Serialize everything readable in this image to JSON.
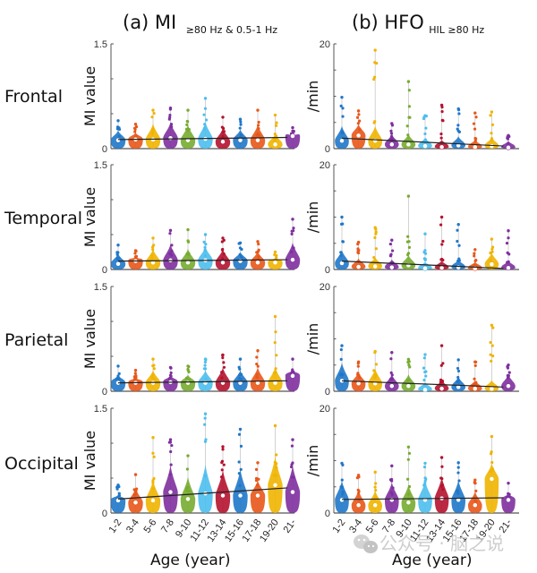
{
  "chart_data": {
    "type": "violin",
    "categories": [
      "1-2",
      "3-4",
      "5-6",
      "7-8",
      "9-10",
      "11-12",
      "13-14",
      "15-16",
      "17-18",
      "19-20",
      "21-"
    ],
    "category_colors": [
      "#1f77c9",
      "#e8571a",
      "#f0b400",
      "#7e2f9e",
      "#77ac30",
      "#4dbeee",
      "#b5122f",
      "#1f77c9",
      "#e8571a",
      "#f0b400",
      "#7e2f9e"
    ],
    "xlabel": "Age (year)",
    "row_labels": [
      "Frontal",
      "Temporal",
      "Parietal",
      "Occipital"
    ],
    "columns": [
      {
        "title_main": "(a) MI",
        "title_sub": "≥80 Hz & 0.5-1 Hz",
        "title_sub_style": "subscript",
        "ylabel": "MI value",
        "ylim": [
          0,
          1.5
        ],
        "yticks": [
          0,
          0.5,
          1.0,
          1.5
        ],
        "ytick_labels": [
          "0",
          "",
          "",
          "1.5"
        ],
        "rows": [
          {
            "region": "Frontal",
            "medians": [
              0.12,
              0.13,
              0.13,
              0.15,
              0.12,
              0.14,
              0.1,
              0.12,
              0.12,
              0.06,
              0.18
            ],
            "maxima": [
              0.4,
              0.35,
              0.55,
              0.58,
              0.55,
              0.72,
              0.45,
              0.42,
              0.55,
              0.48,
              0.3
            ],
            "trend": [
              0.13,
              0.16
            ]
          },
          {
            "region": "Temporal",
            "medians": [
              0.08,
              0.12,
              0.1,
              0.13,
              0.1,
              0.13,
              0.1,
              0.12,
              0.1,
              0.1,
              0.14
            ],
            "maxima": [
              0.35,
              0.27,
              0.45,
              0.56,
              0.57,
              0.5,
              0.45,
              0.38,
              0.4,
              0.25,
              0.72
            ],
            "trend": [
              0.12,
              0.14
            ]
          },
          {
            "region": "Parietal",
            "medians": [
              0.12,
              0.12,
              0.12,
              0.13,
              0.12,
              0.12,
              0.12,
              0.12,
              0.12,
              0.12,
              0.22
            ],
            "maxima": [
              0.36,
              0.3,
              0.46,
              0.34,
              0.36,
              0.46,
              0.52,
              0.46,
              0.58,
              1.07,
              0.46
            ],
            "trend": [
              0.12,
              0.15
            ]
          },
          {
            "region": "Occipital",
            "medians": [
              0.18,
              0.15,
              0.18,
              0.3,
              0.2,
              0.28,
              0.25,
              0.25,
              0.25,
              0.4,
              0.3
            ],
            "maxima": [
              0.4,
              0.55,
              1.08,
              1.05,
              0.82,
              1.42,
              0.95,
              1.2,
              0.72,
              1.25,
              1.05
            ],
            "trend": [
              0.2,
              0.36
            ]
          }
        ]
      },
      {
        "title_main": "(b) HFO",
        "title_sub": "HIL ≥80 Hz",
        "title_sub_style": "subscript",
        "ylabel": "/min",
        "ylim": [
          0,
          20
        ],
        "yticks": [
          0,
          5,
          10,
          15,
          20
        ],
        "ytick_labels": [
          "0",
          "",
          "",
          "",
          "20"
        ],
        "rows": [
          {
            "region": "Frontal",
            "medians": [
              1.5,
              2.5,
              1.5,
              0.8,
              0.8,
              0.5,
              0.3,
              0.6,
              0.3,
              0.5,
              0.2
            ],
            "maxima": [
              9.8,
              7.2,
              18.8,
              4.8,
              12.8,
              6.3,
              8.3,
              7.6,
              6.8,
              7.0,
              2.5
            ],
            "trend": [
              2.0,
              0.5
            ]
          },
          {
            "region": "Temporal",
            "medians": [
              1.2,
              0.5,
              0.6,
              0.4,
              0.8,
              0.2,
              0.3,
              0.4,
              0.2,
              1.0,
              0.3
            ],
            "maxima": [
              10.0,
              5.2,
              8.0,
              5.6,
              14.0,
              6.8,
              10.0,
              8.6,
              3.8,
              5.8,
              7.4
            ],
            "trend": [
              1.6,
              0.2
            ]
          },
          {
            "region": "Parietal",
            "medians": [
              2.0,
              1.5,
              1.5,
              1.0,
              1.0,
              0.3,
              0.5,
              0.8,
              0.5,
              0.5,
              1.0
            ],
            "maxima": [
              8.7,
              5.6,
              7.6,
              7.4,
              6.1,
              7.0,
              8.7,
              6.0,
              5.6,
              12.6,
              5.0
            ],
            "trend": [
              2.0,
              0.8
            ]
          },
          {
            "region": "Occipital",
            "medians": [
              2.5,
              1.5,
              1.5,
              2.5,
              2.0,
              2.5,
              2.8,
              2.5,
              1.5,
              6.5,
              2.5
            ],
            "maxima": [
              9.5,
              7.2,
              7.8,
              9.0,
              12.6,
              9.5,
              10.6,
              9.6,
              6.3,
              14.6,
              5.7
            ],
            "trend": [
              2.6,
              2.9
            ]
          }
        ]
      }
    ]
  },
  "watermark": {
    "icon": "wechat-icon",
    "text": "公众号 · 脑之说"
  }
}
